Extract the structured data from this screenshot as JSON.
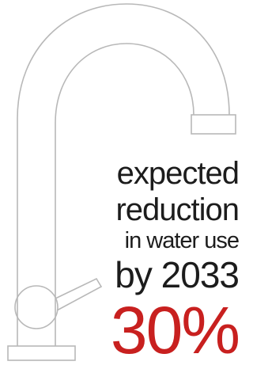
{
  "text": {
    "lines": [
      "expected",
      "reduction",
      "in water use",
      "by 2033"
    ],
    "figure": "30%"
  }
}
